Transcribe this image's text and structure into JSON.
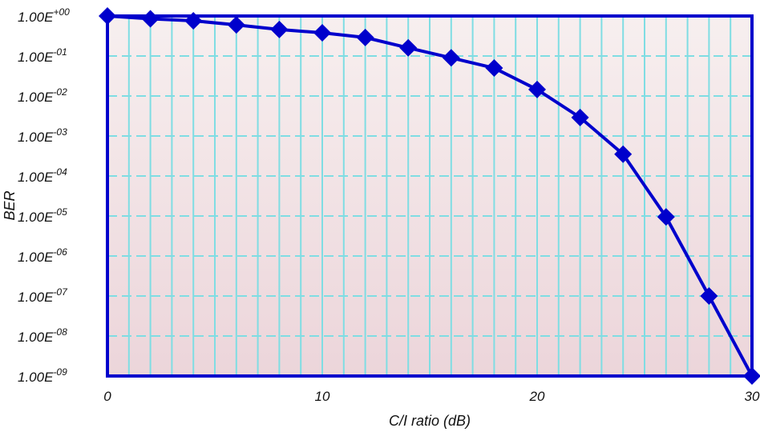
{
  "chart_data": {
    "type": "line",
    "title": "",
    "xlabel": "C/I ratio (dB)",
    "ylabel": "BER",
    "xlim": [
      0,
      30
    ],
    "ylim": [
      -9,
      0
    ],
    "y_scale": "log",
    "x_ticks": [
      0,
      10,
      20,
      30
    ],
    "x_tick_labels": [
      "0",
      "10",
      "20",
      "30"
    ],
    "y_ticks": [
      0,
      -1,
      -2,
      -3,
      -4,
      -5,
      -6,
      -7,
      -8,
      -9
    ],
    "y_tick_labels": [
      {
        "base": "1.00E",
        "exp": "+00"
      },
      {
        "base": "1.00E",
        "exp": "-01"
      },
      {
        "base": "1.00E",
        "exp": "-02"
      },
      {
        "base": "1.00E",
        "exp": "-03"
      },
      {
        "base": "1.00E",
        "exp": "-04"
      },
      {
        "base": "1.00E",
        "exp": "-05"
      },
      {
        "base": "1.00E",
        "exp": "-06"
      },
      {
        "base": "1.00E",
        "exp": "-07"
      },
      {
        "base": "1.00E",
        "exp": "-08"
      },
      {
        "base": "1.00E",
        "exp": "-09"
      }
    ],
    "grid": true,
    "legend": false,
    "series": [
      {
        "marker": "diamond",
        "color": "#0000cc",
        "x": [
          0,
          2,
          4,
          6,
          8,
          10,
          12,
          14,
          16,
          18,
          20,
          22,
          24,
          26,
          28,
          30
        ],
        "y": [
          1.0,
          0.85,
          0.76,
          0.6,
          0.46,
          0.38,
          0.29,
          0.16,
          0.09,
          0.05,
          0.0145,
          0.0029,
          0.00035,
          9.5e-06,
          1e-07,
          1e-09
        ]
      }
    ],
    "colors": {
      "frame": "#0000cc",
      "line": "#0000cc",
      "grid": "#7fdde3",
      "plot_bg_top": "#f7efef",
      "plot_bg_bottom": "#ecd5da"
    }
  }
}
